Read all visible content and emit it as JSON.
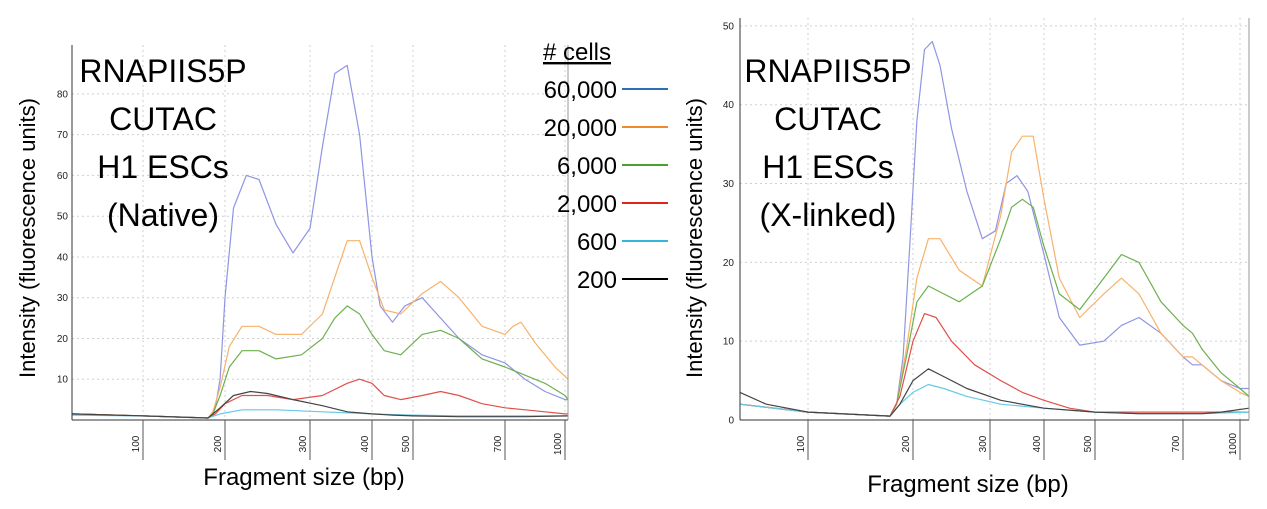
{
  "legend": {
    "title": "# cells",
    "entries": [
      {
        "label": "60,000",
        "color": "#2e6eb5"
      },
      {
        "label": "20,000",
        "color": "#ef8a2d"
      },
      {
        "label": "6,000",
        "color": "#4aa02c"
      },
      {
        "label": "2,000",
        "color": "#e0241b"
      },
      {
        "label": "600",
        "color": "#33b6d9"
      },
      {
        "label": "200",
        "color": "#000000"
      }
    ]
  },
  "chart_data": [
    {
      "type": "line",
      "annotation": [
        "RNAPIIS5P",
        "CUTAC",
        "H1 ESCs",
        "(Native)"
      ],
      "xlabel": "Fragment size (bp)",
      "ylabel": "Intensity (fluorescence units)",
      "x_tick_labels": [
        "100",
        "200",
        "300",
        "400",
        "500",
        "700",
        "1000"
      ],
      "y_ticks": [
        10,
        20,
        30,
        40,
        50,
        60,
        70,
        80
      ],
      "ylim": [
        0,
        92
      ],
      "grid": true,
      "x_note": "x values are positions on the instrument's fragment-size axis in bp, using tick labels as anchors",
      "series": [
        {
          "name": "60,000",
          "color": "#8f95e3",
          "x": [
            35,
            100,
            165,
            170,
            180,
            190,
            200,
            210,
            225,
            240,
            260,
            280,
            300,
            320,
            340,
            360,
            380,
            400,
            420,
            450,
            480,
            520,
            560,
            600,
            650,
            700,
            750,
            800,
            900,
            1000,
            1050
          ],
          "y": [
            1.5,
            1,
            0.5,
            1,
            3,
            10,
            30,
            52,
            60,
            59,
            48,
            41,
            47,
            67,
            85,
            87,
            70,
            40,
            28,
            24,
            28,
            30,
            25,
            20,
            16,
            14,
            12,
            10,
            7,
            5,
            5
          ]
        },
        {
          "name": "20,000",
          "color": "#f7b26b",
          "x": [
            35,
            100,
            165,
            175,
            190,
            205,
            220,
            240,
            260,
            290,
            320,
            340,
            360,
            380,
            400,
            430,
            470,
            520,
            560,
            600,
            650,
            700,
            740,
            780,
            850,
            950,
            1050
          ],
          "y": [
            1.5,
            1,
            0.5,
            2,
            8,
            18,
            23,
            23,
            21,
            21,
            26,
            35,
            44,
            44,
            35,
            27,
            26,
            31,
            34,
            30,
            23,
            21,
            23,
            24,
            19,
            13,
            10
          ]
        },
        {
          "name": "6,000",
          "color": "#6cb04f",
          "x": [
            35,
            100,
            165,
            175,
            190,
            205,
            220,
            240,
            260,
            290,
            320,
            340,
            360,
            380,
            400,
            430,
            470,
            520,
            560,
            600,
            650,
            700,
            750,
            800,
            900,
            1000,
            1050
          ],
          "y": [
            1.5,
            1,
            0.5,
            1.5,
            6,
            13,
            17,
            17,
            15,
            16,
            20,
            25,
            28,
            26,
            21,
            17,
            16,
            21,
            22,
            20,
            15,
            13,
            12,
            11,
            9,
            6,
            5
          ]
        },
        {
          "name": "2,000",
          "color": "#e0504a",
          "x": [
            35,
            100,
            165,
            180,
            200,
            220,
            250,
            280,
            320,
            360,
            380,
            400,
            430,
            470,
            520,
            560,
            600,
            650,
            700,
            800,
            900,
            1000,
            1050
          ],
          "y": [
            1.5,
            1,
            0.5,
            1.5,
            4,
            6,
            6,
            5,
            6,
            9,
            10,
            9,
            6,
            5,
            6,
            7,
            6,
            4,
            3,
            2.5,
            2,
            1.5,
            1.5
          ]
        },
        {
          "name": "600",
          "color": "#66c9e6",
          "x": [
            35,
            100,
            165,
            190,
            220,
            260,
            320,
            400,
            500,
            600,
            700,
            800,
            900,
            1050
          ],
          "y": [
            1.2,
            1,
            0.5,
            1.5,
            2.5,
            2.5,
            2,
            1.5,
            1.2,
            1,
            1,
            1,
            1,
            1
          ]
        },
        {
          "name": "200",
          "color": "#444444",
          "x": [
            35,
            100,
            165,
            190,
            210,
            230,
            250,
            280,
            320,
            360,
            400,
            450,
            500,
            600,
            700,
            800,
            1050
          ],
          "y": [
            1.5,
            1,
            0.5,
            3,
            6,
            7,
            6.5,
            5,
            3.5,
            2,
            1.5,
            1.2,
            1,
            0.8,
            0.8,
            0.8,
            1
          ]
        }
      ]
    },
    {
      "type": "line",
      "annotation": [
        "RNAPIIS5P",
        "CUTAC",
        "H1 ESCs",
        "(X-linked)"
      ],
      "xlabel": "Fragment size (bp)",
      "ylabel": "Intensity (fluorescence units)",
      "x_tick_labels": [
        "100",
        "200",
        "300",
        "400",
        "500",
        "700",
        "1000"
      ],
      "y_ticks": [
        0,
        10,
        20,
        30,
        40,
        50
      ],
      "ylim": [
        0,
        51
      ],
      "grid": true,
      "x_note": "x values are positions on the instrument's fragment-size axis in bp, using tick labels as anchors",
      "series": [
        {
          "name": "60,000",
          "color": "#8f95e3",
          "x": [
            35,
            100,
            165,
            175,
            185,
            195,
            205,
            215,
            225,
            235,
            250,
            270,
            290,
            310,
            330,
            350,
            370,
            400,
            430,
            470,
            520,
            560,
            600,
            650,
            700,
            750,
            800,
            900,
            1000,
            1050
          ],
          "y": [
            2,
            1,
            0.5,
            2,
            8,
            22,
            38,
            47,
            48,
            45,
            37,
            29,
            23,
            24,
            30,
            31,
            29,
            21,
            13,
            9.5,
            10,
            12,
            13,
            11,
            8,
            7,
            7,
            5,
            4,
            4
          ]
        },
        {
          "name": "20,000",
          "color": "#f7b26b",
          "x": [
            35,
            100,
            165,
            175,
            190,
            205,
            220,
            235,
            260,
            290,
            320,
            340,
            360,
            380,
            400,
            430,
            470,
            520,
            560,
            600,
            650,
            700,
            750,
            800,
            900,
            1000,
            1050
          ],
          "y": [
            2,
            1,
            0.5,
            2,
            9,
            18,
            23,
            23,
            19,
            17,
            26,
            34,
            36,
            36,
            28,
            18,
            13,
            16,
            18,
            16,
            11,
            8,
            8,
            7,
            5,
            3.5,
            3
          ]
        },
        {
          "name": "6,000",
          "color": "#6cb04f",
          "x": [
            35,
            100,
            165,
            175,
            190,
            205,
            220,
            240,
            260,
            290,
            320,
            340,
            360,
            380,
            400,
            430,
            470,
            520,
            560,
            600,
            650,
            700,
            750,
            800,
            900,
            1000,
            1050
          ],
          "y": [
            2,
            1,
            0.5,
            2,
            8,
            15,
            17,
            16,
            15,
            17,
            23,
            27,
            28,
            27,
            22,
            16,
            14,
            18,
            21,
            20,
            15,
            12,
            11,
            9,
            6,
            4,
            3
          ]
        },
        {
          "name": "2,000",
          "color": "#e0504a",
          "x": [
            35,
            100,
            165,
            180,
            200,
            215,
            230,
            250,
            280,
            320,
            360,
            400,
            450,
            500,
            600,
            700,
            800,
            900,
            1050
          ],
          "y": [
            2,
            1,
            0.5,
            3,
            10,
            13.5,
            13,
            10,
            7,
            5,
            3.5,
            2.5,
            1.5,
            1,
            1,
            1,
            1,
            1,
            1
          ]
        },
        {
          "name": "600",
          "color": "#66c9e6",
          "x": [
            35,
            100,
            165,
            180,
            200,
            220,
            240,
            270,
            320,
            400,
            500,
            600,
            700,
            800,
            1050
          ],
          "y": [
            2,
            1,
            0.5,
            2,
            3.5,
            4.5,
            4,
            3,
            2,
            1.5,
            1,
            0.8,
            0.8,
            0.8,
            1
          ]
        },
        {
          "name": "200",
          "color": "#444444",
          "x": [
            35,
            60,
            100,
            165,
            180,
            200,
            220,
            240,
            270,
            320,
            400,
            500,
            600,
            700,
            800,
            900,
            1050
          ],
          "y": [
            3.5,
            2,
            1,
            0.5,
            2,
            5,
            6.5,
            5.5,
            4,
            2.5,
            1.5,
            1,
            0.8,
            0.8,
            0.8,
            1,
            1.5
          ]
        }
      ]
    }
  ]
}
